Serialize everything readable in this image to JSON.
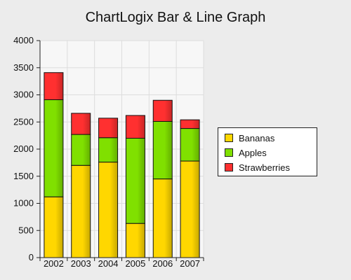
{
  "chart_data": {
    "type": "bar",
    "stacked": true,
    "title": "ChartLogix Bar & Line Graph",
    "categories": [
      "2002",
      "2003",
      "2004",
      "2005",
      "2006",
      "2007"
    ],
    "series": [
      {
        "name": "Bananas",
        "color": "#ffd700",
        "values": [
          1120,
          1700,
          1760,
          630,
          1450,
          1780
        ]
      },
      {
        "name": "Apples",
        "color": "#80e000",
        "values": [
          1790,
          570,
          450,
          1570,
          1060,
          600
        ]
      },
      {
        "name": "Strawberries",
        "color": "#ff3030",
        "values": [
          500,
          390,
          360,
          420,
          390,
          160
        ]
      }
    ],
    "ylim": [
      0,
      4000
    ],
    "yticks": [
      "0",
      "500",
      "1000",
      "1500",
      "2000",
      "2500",
      "3000",
      "3500",
      "4000"
    ],
    "grid": true,
    "legend_position": "right"
  }
}
